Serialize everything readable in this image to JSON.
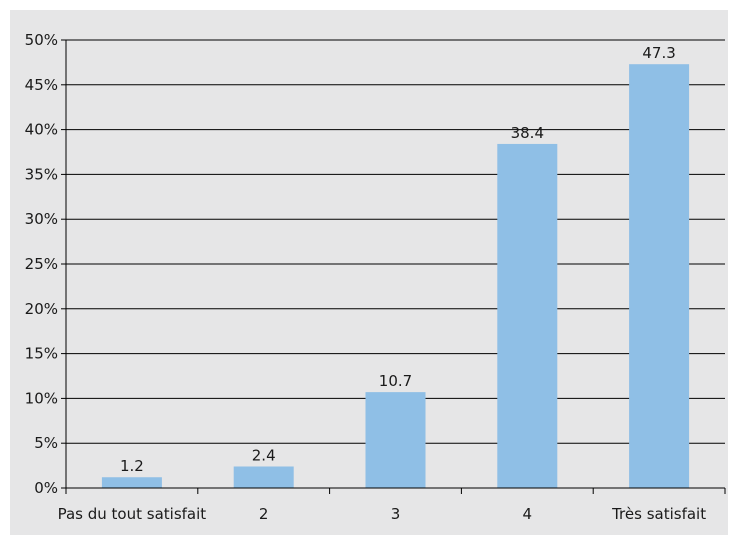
{
  "chart_data": {
    "type": "bar",
    "title": "",
    "xlabel": "",
    "ylabel": "",
    "categories": [
      "Pas du tout satisfait",
      "2",
      "3",
      "4",
      "Très satisfait"
    ],
    "values": [
      1.2,
      2.4,
      10.7,
      38.4,
      47.3
    ],
    "data_labels": [
      "1.2",
      "2.4",
      "10.7",
      "38.4",
      "47.3"
    ],
    "ylim": [
      0,
      50
    ],
    "yticks": [
      0,
      5,
      10,
      15,
      20,
      25,
      30,
      35,
      40,
      45,
      50
    ],
    "ytick_labels": [
      "0%",
      "5%",
      "10%",
      "15%",
      "20%",
      "25%",
      "30%",
      "35%",
      "40%",
      "45%",
      "50%"
    ],
    "grid": true,
    "legend": "none",
    "colors": {
      "bar": "#8fbfe6",
      "background": "#e6e6e7",
      "grid": "#000000"
    }
  }
}
